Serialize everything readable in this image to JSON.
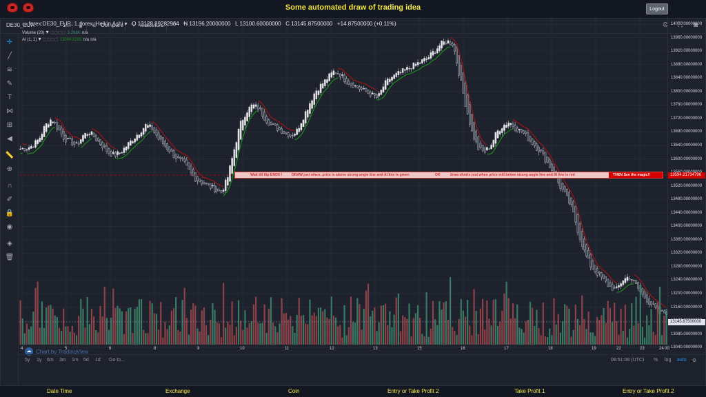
{
  "page": {
    "title": "Some automated draw of trading idea",
    "logout_label": "Logout"
  },
  "toolbar": {
    "symbol": "DE30_EUR",
    "interval": "1m",
    "compare_label": "Compare",
    "indicators_label": "Indicators"
  },
  "legend": {
    "main": "forex:DE30_EUR, 1, forex, Heikin Ashi",
    "open": "O 13128.89282964",
    "high": "H 13196.20000000",
    "low": "L 13100.60000000",
    "close": "C 13145.87500000",
    "change": "+14.87500000 (+0.11%)",
    "volume_label": "Volume (20)",
    "volume_value": "3.268K",
    "volume_na": "n/a",
    "ai_label": "AI (1, 1)",
    "ai_value": "13094.6285",
    "ai_na1": "n/a",
    "ai_na2": "n/a"
  },
  "annotation": {
    "text1": "Wait till flip ENDS  !",
    "text2": "DRAW just when:  price is above strong angle line and AI line is green",
    "text3": "OK",
    "text4": "draw shorts just when price still below strong angle line and AI line is red",
    "text5": "THEN See the magic!!"
  },
  "price_axis": {
    "ticks": [
      "14000.00000000",
      "13960.00000000",
      "13920.00000000",
      "13880.00000000",
      "13840.00000000",
      "13800.00000000",
      "13760.00000000",
      "13720.00000000",
      "13680.00000000",
      "13640.00000000",
      "13600.00000000",
      "13560.00000000",
      "13520.00000000",
      "13480.00000000",
      "13440.00000000",
      "13400.00000000",
      "13360.00000000",
      "13320.00000000",
      "13280.00000000",
      "13240.00000000",
      "13200.00000000",
      "13160.00000000",
      "13120.00000000",
      "13080.00000000",
      "13040.00000000"
    ],
    "marker_line": "13594.21734796",
    "marker_close": "13145.87500000"
  },
  "time_axis": {
    "ticks": [
      "4",
      "5",
      "6",
      "8",
      "9",
      "10",
      "11",
      "12",
      "13",
      "15",
      "16",
      "17",
      "18",
      "19",
      "22",
      "23",
      "24",
      "00:"
    ]
  },
  "bottom_bar": {
    "ranges": [
      "5y",
      "1y",
      "6m",
      "3m",
      "1m",
      "5d",
      "1d"
    ],
    "goto": "Go to...",
    "time": "08:51:08 (UTC)",
    "percent": "%",
    "log": "log",
    "auto": "auto"
  },
  "watermark": "Chart by TradingView",
  "footer": {
    "items": [
      "Date Time",
      "Exchange",
      "Coin",
      "Entry or Take Profit 2",
      "Take Profit 1",
      "Entry or Take Profit 2"
    ]
  },
  "colors": {
    "up": "#e9e9e9",
    "down": "#3a3f4b",
    "ai_green": "#1b8e1b",
    "ai_red": "#a01515",
    "vol_up": "#3f8a6e",
    "vol_down": "#a2464c",
    "accent": "#f5e642"
  },
  "chart_data": {
    "type": "candlestick",
    "note_y_range": [
      13020,
      14020
    ],
    "close_series": [
      13630,
      13632,
      13640,
      13660,
      13700,
      13720,
      13690,
      13660,
      13650,
      13640,
      13670,
      13680,
      13660,
      13640,
      13620,
      13610,
      13620,
      13640,
      13660,
      13680,
      13700,
      13690,
      13660,
      13640,
      13620,
      13600,
      13590,
      13560,
      13540,
      13530,
      13520,
      13510,
      13500,
      13540,
      13620,
      13700,
      13740,
      13760,
      13750,
      13720,
      13700,
      13690,
      13680,
      13670,
      13680,
      13720,
      13760,
      13800,
      13820,
      13840,
      13860,
      13850,
      13830,
      13820,
      13810,
      13800,
      13790,
      13780,
      13820,
      13840,
      13850,
      13860,
      13870,
      13880,
      13890,
      13900,
      13920,
      13940,
      13950,
      13940,
      13850,
      13760,
      13680,
      13630,
      13620,
      13640,
      13680,
      13700,
      13710,
      13690,
      13680,
      13660,
      13640,
      13620,
      13590,
      13560,
      13520,
      13490,
      13450,
      13380,
      13320,
      13280,
      13260,
      13240,
      13220,
      13210,
      13240,
      13250,
      13230,
      13200,
      13180,
      13160,
      13140,
      13145
    ]
  }
}
